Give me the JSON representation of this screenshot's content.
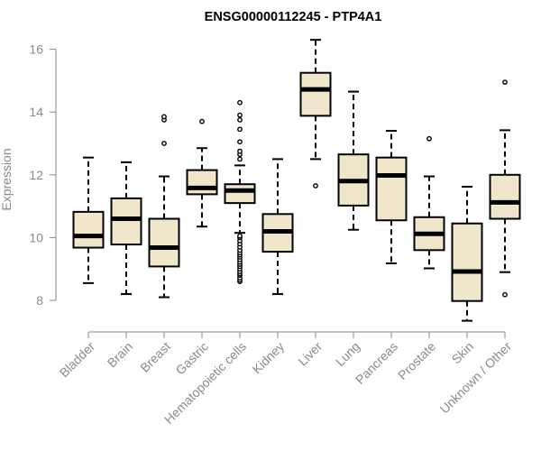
{
  "chart_data": {
    "type": "boxplot",
    "title": "ENSG00000112245 - PTP4A1",
    "ylabel": "Expression",
    "xlabel": "",
    "ylim": [
      7.1,
      16.6
    ],
    "yticks": [
      8,
      10,
      12,
      14,
      16
    ],
    "box_color": "#efe6cc",
    "categories": [
      "Bladder",
      "Brain",
      "Breast",
      "Gastric",
      "Hematopoietic cells",
      "Kidney",
      "Liver",
      "Lung",
      "Pancreas",
      "Prostate",
      "Skin",
      "Unknown / Other"
    ],
    "boxes": [
      {
        "whislo": 8.55,
        "q1": 9.68,
        "med": 10.05,
        "q3": 10.82,
        "whishi": 12.55,
        "fliers": []
      },
      {
        "whislo": 8.2,
        "q1": 9.78,
        "med": 10.6,
        "q3": 11.25,
        "whishi": 12.4,
        "fliers": []
      },
      {
        "whislo": 8.1,
        "q1": 9.08,
        "med": 9.68,
        "q3": 10.6,
        "whishi": 11.95,
        "fliers": [
          13.0,
          13.75,
          13.85
        ]
      },
      {
        "whislo": 10.35,
        "q1": 11.38,
        "med": 11.58,
        "q3": 12.15,
        "whishi": 12.85,
        "fliers": [
          13.7
        ]
      },
      {
        "whislo": 10.15,
        "q1": 11.1,
        "med": 11.5,
        "q3": 11.7,
        "whishi": 12.3,
        "fliers": [
          8.6,
          8.65,
          8.72,
          8.8,
          8.85,
          8.92,
          9.0,
          9.08,
          9.15,
          9.22,
          9.3,
          9.38,
          9.45,
          9.52,
          9.6,
          9.7,
          9.8,
          9.9,
          10.0,
          10.05,
          12.5,
          12.65,
          12.75,
          13.05,
          13.45,
          13.75,
          13.9,
          14.3
        ]
      },
      {
        "whislo": 8.2,
        "q1": 9.55,
        "med": 10.2,
        "q3": 10.75,
        "whishi": 12.5,
        "fliers": []
      },
      {
        "whislo": 12.5,
        "q1": 13.88,
        "med": 14.72,
        "q3": 15.25,
        "whishi": 16.3,
        "fliers": [
          11.65
        ]
      },
      {
        "whislo": 10.25,
        "q1": 11.02,
        "med": 11.8,
        "q3": 12.65,
        "whishi": 14.65,
        "fliers": []
      },
      {
        "whislo": 9.18,
        "q1": 10.55,
        "med": 11.98,
        "q3": 12.55,
        "whishi": 13.4,
        "fliers": []
      },
      {
        "whislo": 9.02,
        "q1": 9.6,
        "med": 10.12,
        "q3": 10.65,
        "whishi": 11.95,
        "fliers": [
          13.15
        ]
      },
      {
        "whislo": 7.35,
        "q1": 7.98,
        "med": 8.92,
        "q3": 10.45,
        "whishi": 11.62,
        "fliers": []
      },
      {
        "whislo": 8.9,
        "q1": 10.6,
        "med": 11.12,
        "q3": 12.0,
        "whishi": 13.42,
        "fliers": [
          8.18,
          14.95
        ]
      }
    ]
  }
}
